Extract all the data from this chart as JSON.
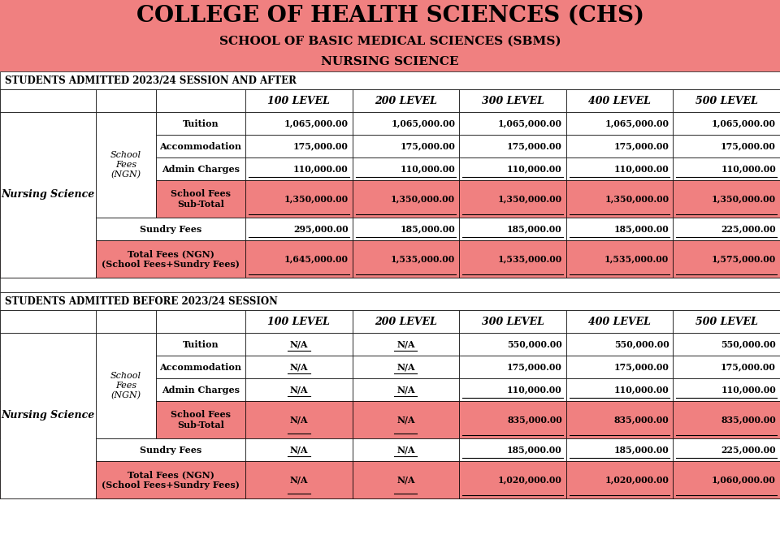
{
  "title1": "COLLEGE OF HEALTH SCIENCES (CHS)",
  "title2": "SCHOOL OF BASIC MEDICAL SCIENCES (SBMS)",
  "title3": "NURSING SCIENCE",
  "header_bg": "#F08080",
  "section1_label": "STUDENTS ADMITTED 2023/24 SESSION AND AFTER",
  "section2_label": "STUDENTS ADMITTED BEFORE 2023/24 SESSION",
  "levels": [
    "100 LEVEL",
    "200 LEVEL",
    "300 LEVEL",
    "400 LEVEL",
    "500 LEVEL"
  ],
  "row_labels_short": [
    "Tuition",
    "Accommodation",
    "Admin Charges"
  ],
  "col1_label": "Nursing Science",
  "col2_label": "School\nFees\n(NGN)",
  "subtotal_label": "School Fees\nSub-Total",
  "sundry_label": "Sundry Fees",
  "total_label": "Total Fees (NGN)\n(School Fees+Sundry Fees)",
  "section1_data": [
    [
      "1,065,000.00",
      "1,065,000.00",
      "1,065,000.00",
      "1,065,000.00",
      "1,065,000.00"
    ],
    [
      "175,000.00",
      "175,000.00",
      "175,000.00",
      "175,000.00",
      "175,000.00"
    ],
    [
      "110,000.00",
      "110,000.00",
      "110,000.00",
      "110,000.00",
      "110,000.00"
    ],
    [
      "1,350,000.00",
      "1,350,000.00",
      "1,350,000.00",
      "1,350,000.00",
      "1,350,000.00"
    ],
    [
      "295,000.00",
      "185,000.00",
      "185,000.00",
      "185,000.00",
      "225,000.00"
    ],
    [
      "1,645,000.00",
      "1,535,000.00",
      "1,535,000.00",
      "1,535,000.00",
      "1,575,000.00"
    ]
  ],
  "section2_data": [
    [
      "N/A",
      "N/A",
      "550,000.00",
      "550,000.00",
      "550,000.00"
    ],
    [
      "N/A",
      "N/A",
      "175,000.00",
      "175,000.00",
      "175,000.00"
    ],
    [
      "N/A",
      "N/A",
      "110,000.00",
      "110,000.00",
      "110,000.00"
    ],
    [
      "N/A",
      "N/A",
      "835,000.00",
      "835,000.00",
      "835,000.00"
    ],
    [
      "N/A",
      "N/A",
      "185,000.00",
      "185,000.00",
      "225,000.00"
    ],
    [
      "N/A",
      "N/A",
      "1,020,000.00",
      "1,020,000.00",
      "1,060,000.00"
    ]
  ],
  "highlight_color": "#F08080",
  "white": "#FFFFFF",
  "gap_color": "#FFFFFF"
}
